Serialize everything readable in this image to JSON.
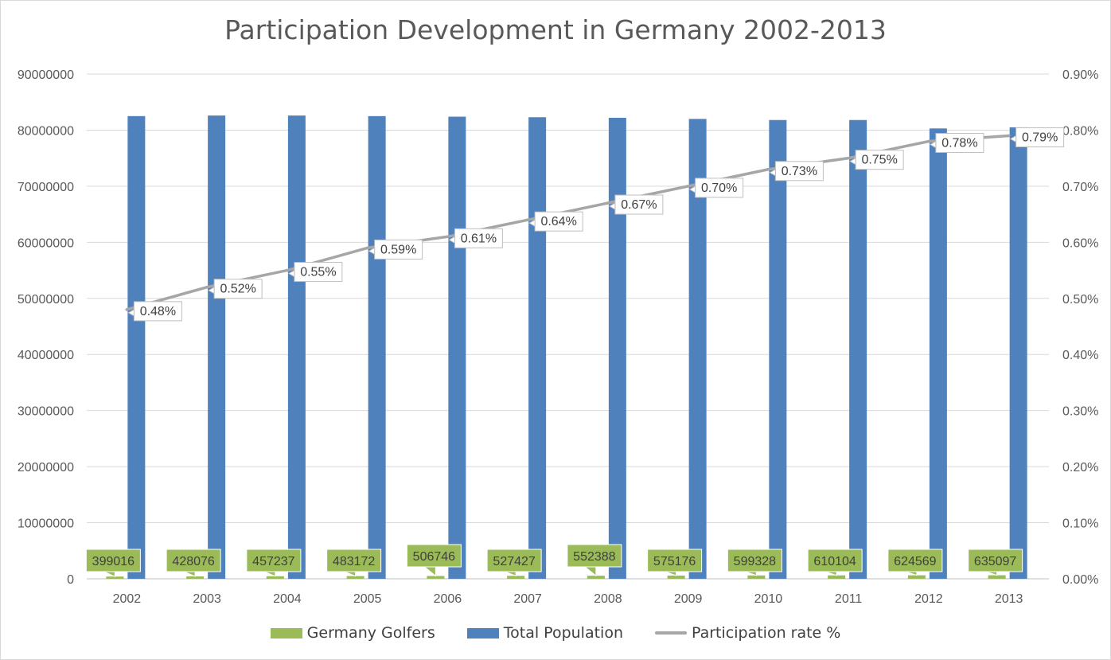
{
  "chart_data": {
    "type": "bar",
    "title": "Participation Development in Germany 2002-2013",
    "categories": [
      "2002",
      "2003",
      "2004",
      "2005",
      "2006",
      "2007",
      "2008",
      "2009",
      "2010",
      "2011",
      "2012",
      "2013"
    ],
    "series": [
      {
        "name": "Germany Golfers",
        "type": "bar",
        "axis": "left",
        "color": "#9bbb59",
        "values": [
          399016,
          428076,
          457237,
          483172,
          506746,
          527427,
          552388,
          575176,
          599328,
          610104,
          624569,
          635097
        ],
        "labels": [
          "399016",
          "428076",
          "457237",
          "483172",
          "506746",
          "527427",
          "552388",
          "575176",
          "599328",
          "610104",
          "624569",
          "635097"
        ]
      },
      {
        "name": "Total Population",
        "type": "bar",
        "axis": "left",
        "color": "#4f81bd",
        "values": [
          82500000,
          82600000,
          82600000,
          82500000,
          82400000,
          82300000,
          82200000,
          82000000,
          81800000,
          81800000,
          80300000,
          80500000
        ]
      },
      {
        "name": "Participation rate %",
        "type": "line",
        "axis": "right",
        "color": "#a6a6a6",
        "values": [
          0.48,
          0.52,
          0.55,
          0.59,
          0.61,
          0.64,
          0.67,
          0.7,
          0.73,
          0.75,
          0.78,
          0.79
        ],
        "labels": [
          "0.48%",
          "0.52%",
          "0.55%",
          "0.59%",
          "0.61%",
          "0.64%",
          "0.67%",
          "0.70%",
          "0.73%",
          "0.75%",
          "0.78%",
          "0.79%"
        ]
      }
    ],
    "y_left": {
      "ylim": [
        0,
        90000000
      ],
      "ticks": [
        "0",
        "10000000",
        "20000000",
        "30000000",
        "40000000",
        "50000000",
        "60000000",
        "70000000",
        "80000000",
        "90000000"
      ]
    },
    "y_right": {
      "ylim": [
        0,
        0.9
      ],
      "ticks": [
        "0.00%",
        "0.10%",
        "0.20%",
        "0.30%",
        "0.40%",
        "0.50%",
        "0.60%",
        "0.70%",
        "0.80%",
        "0.90%"
      ]
    },
    "grid": true,
    "legend_position": "bottom"
  }
}
